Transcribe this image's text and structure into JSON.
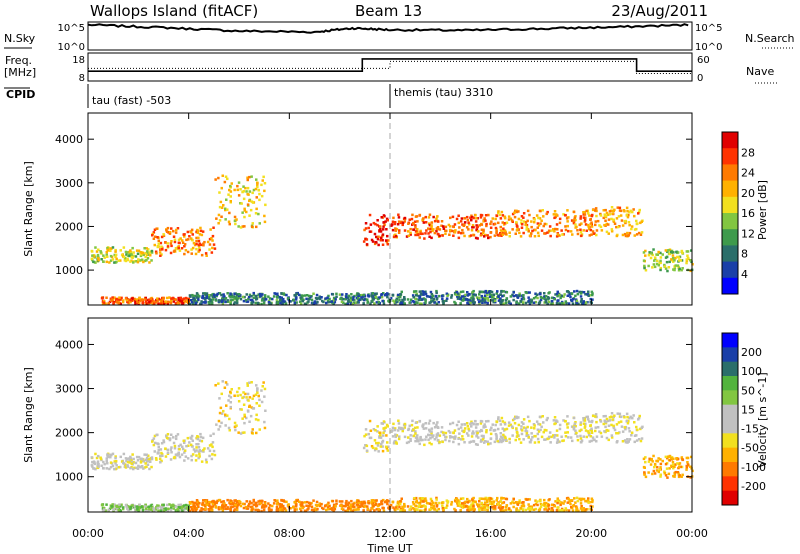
{
  "header": {
    "site": "Wallops Island (fitACF)",
    "beam": "Beam 13",
    "date": "23/Aug/2011"
  },
  "top_panels": {
    "nsky_label": "N.Sky",
    "nsky_ticks": [
      "10^5",
      "10^0"
    ],
    "nsky_right_ticks": [
      "10^5",
      "10^0"
    ],
    "nsearch_label": "N.Search",
    "freq_label_1": "Freq.",
    "freq_label_2": "[MHz]",
    "freq_ticks": [
      "18",
      "8"
    ],
    "nave_ticks": [
      "60",
      "0"
    ],
    "nave_label": "Nave",
    "cpid_label": "CPID",
    "cpid_1": "tau (fast) -503",
    "cpid_2": "themis (tau) 3310"
  },
  "range_panels": {
    "ylabel": "Slant Range [km]",
    "yticks": [
      "4000",
      "3000",
      "2000",
      "1000"
    ],
    "ytick_values": [
      4000,
      3000,
      2000,
      1000
    ],
    "ylim": [
      200,
      4600
    ]
  },
  "time_axis": {
    "xlabel": "Time UT",
    "ticks": [
      "00:00",
      "04:00",
      "08:00",
      "12:00",
      "16:00",
      "20:00",
      "00:00"
    ],
    "tick_hours": [
      0,
      4,
      8,
      12,
      16,
      20,
      24
    ],
    "xlim": [
      0,
      24
    ]
  },
  "power_scale": {
    "label": "Power [dB]",
    "ticks": [
      "28",
      "24",
      "20",
      "16",
      "12",
      "8",
      "4"
    ],
    "colors": [
      "#0000ff",
      "#1a3fa8",
      "#2a6e6a",
      "#3e9a4c",
      "#82c641",
      "#f2e01f",
      "#ffb100",
      "#ff7a00",
      "#ff3300",
      "#e00000"
    ]
  },
  "velocity_scale": {
    "label": "Velocity [m s^-1]",
    "ticks": [
      "200",
      "100",
      "50",
      "15",
      "-15",
      "-50",
      "-100",
      "-200"
    ],
    "colors": [
      "#0000ff",
      "#1a3fa8",
      "#2a6e6a",
      "#52b33d",
      "#82c641",
      "#c0c0c0",
      "#c0c0c0",
      "#f2e01f",
      "#ffb100",
      "#ff7a00",
      "#ff3300",
      "#e00000"
    ]
  },
  "chart_data": {
    "type": "heatmap",
    "cpid_change_hour": 12,
    "freq_mhz": [
      {
        "t": 0.0,
        "f": 11.5
      },
      {
        "t": 10.9,
        "f": 11.5
      },
      {
        "t": 10.9,
        "f": 15.9
      },
      {
        "t": 21.8,
        "f": 15.9
      },
      {
        "t": 21.8,
        "f": 11.5
      },
      {
        "t": 24.0,
        "f": 11.5
      }
    ],
    "nave": [
      {
        "t": 0.0,
        "n": 27
      },
      {
        "t": 12.0,
        "n": 27
      },
      {
        "t": 12.0,
        "n": 42
      },
      {
        "t": 21.8,
        "n": 42
      },
      {
        "t": 21.8,
        "n": 16
      },
      {
        "t": 24.0,
        "n": 16
      }
    ],
    "nsky_log": [
      {
        "t": 0.0,
        "v": 4.5
      },
      {
        "t": 3.0,
        "v": 4.0
      },
      {
        "t": 6.0,
        "v": 3.4
      },
      {
        "t": 9.0,
        "v": 3.2
      },
      {
        "t": 10.5,
        "v": 3.9
      },
      {
        "t": 12.0,
        "v": 3.6
      },
      {
        "t": 15.0,
        "v": 3.5
      },
      {
        "t": 18.0,
        "v": 3.8
      },
      {
        "t": 21.0,
        "v": 4.1
      },
      {
        "t": 24.0,
        "v": 4.5
      }
    ],
    "echo_bands": [
      {
        "t0": 0.1,
        "t1": 2.5,
        "r0": 1200,
        "r1": 1550,
        "p": 16,
        "v": -5
      },
      {
        "t0": 2.5,
        "t1": 5.0,
        "r0": 1350,
        "r1": 2000,
        "p": 22,
        "v": -10
      },
      {
        "t0": 5.0,
        "t1": 7.0,
        "r0": 2000,
        "r1": 3200,
        "p": 18,
        "v": -20
      },
      {
        "t0": 10.9,
        "t1": 12.0,
        "r0": 1600,
        "r1": 2300,
        "p": 26,
        "v": -15
      },
      {
        "t0": 12.0,
        "t1": 16.0,
        "r0": 1750,
        "r1": 2300,
        "p": 24,
        "v": -5
      },
      {
        "t0": 16.0,
        "t1": 20.0,
        "r0": 1800,
        "r1": 2400,
        "p": 22,
        "v": -10
      },
      {
        "t0": 20.0,
        "t1": 22.0,
        "r0": 1800,
        "r1": 2500,
        "p": 20,
        "v": -8
      },
      {
        "t0": 22.0,
        "t1": 24.0,
        "r0": 1000,
        "r1": 1500,
        "p": 14,
        "v": -40
      },
      {
        "t0": 0.5,
        "t1": 4.0,
        "r0": 250,
        "r1": 400,
        "p": 24,
        "v": 20
      },
      {
        "t0": 4.0,
        "t1": 12.0,
        "r0": 250,
        "r1": 500,
        "p": 8,
        "v": -60
      },
      {
        "t0": 12.0,
        "t1": 20.0,
        "r0": 250,
        "r1": 550,
        "p": 8,
        "v": -40
      }
    ]
  }
}
